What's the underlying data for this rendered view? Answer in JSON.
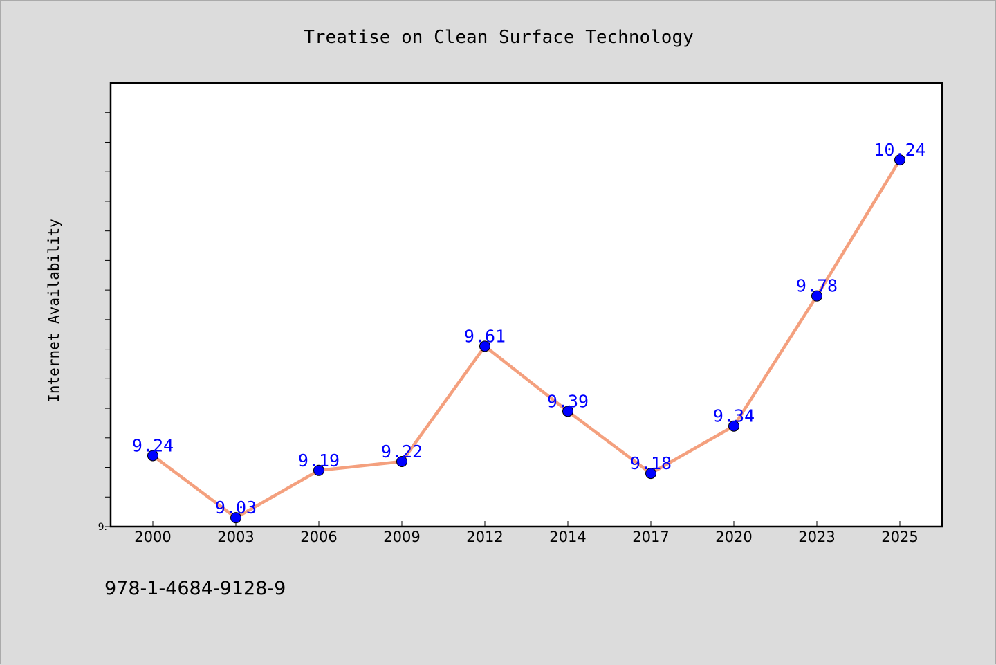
{
  "chart_data": {
    "type": "line",
    "title": "Treatise on Clean Surface Technology",
    "ylabel": "Internet Availability",
    "xlabel": "",
    "categories": [
      "2000",
      "2003",
      "2006",
      "2009",
      "2012",
      "2014",
      "2017",
      "2020",
      "2023",
      "2025"
    ],
    "series": [
      {
        "values": [
          9.24,
          9.03,
          9.19,
          9.22,
          9.61,
          9.39,
          9.18,
          9.34,
          9.78,
          10.24
        ]
      }
    ],
    "ylim": [
      9.0,
      10.5
    ],
    "ytick_labels": [
      "9."
    ],
    "ytick_step": 0.1,
    "grid": false,
    "line_color": "#f4a07e",
    "marker_color": "#0000ff",
    "label_color": "#0000ff"
  },
  "footer": {
    "isbn": "978-1-4684-9128-9"
  }
}
